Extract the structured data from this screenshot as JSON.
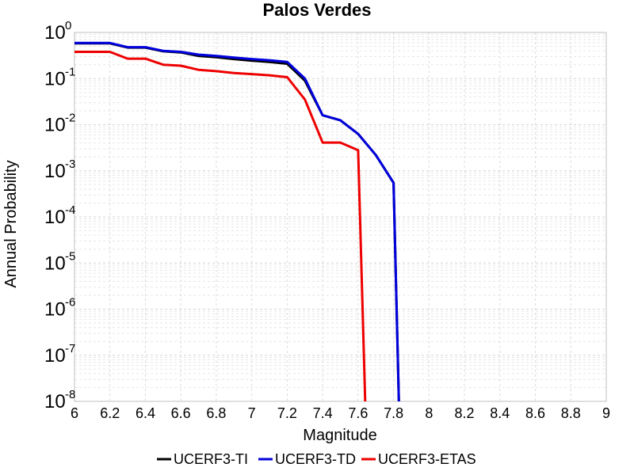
{
  "chart_data": {
    "type": "line",
    "title": "Palos Verdes",
    "xlabel": "Magnitude",
    "ylabel": "Annual Probability",
    "xlim": [
      6,
      9
    ],
    "ylim": [
      1e-08,
      1
    ],
    "yscale": "log",
    "grid": true,
    "legend_position": "bottom",
    "x_ticks": [
      "6",
      "6.2",
      "6.4",
      "6.6",
      "6.8",
      "7",
      "7.2",
      "7.4",
      "7.6",
      "7.8",
      "8",
      "8.2",
      "8.4",
      "8.6",
      "8.8",
      "9"
    ],
    "y_ticks": [
      {
        "base": "10",
        "exp": "0"
      },
      {
        "base": "10",
        "exp": "-1"
      },
      {
        "base": "10",
        "exp": "-2"
      },
      {
        "base": "10",
        "exp": "-3"
      },
      {
        "base": "10",
        "exp": "-4"
      },
      {
        "base": "10",
        "exp": "-5"
      },
      {
        "base": "10",
        "exp": "-6"
      },
      {
        "base": "10",
        "exp": "-7"
      },
      {
        "base": "10",
        "exp": "-8"
      }
    ],
    "series": [
      {
        "name": "UCERF3-TI",
        "color": "#000000",
        "x": [
          6.0,
          6.2,
          6.3,
          6.4,
          6.5,
          6.6,
          6.7,
          6.8,
          6.9,
          7.0,
          7.1,
          7.2,
          7.3,
          7.4,
          7.5,
          7.6,
          7.7,
          7.8,
          7.83
        ],
        "y": [
          0.58,
          0.58,
          0.47,
          0.47,
          0.39,
          0.37,
          0.31,
          0.29,
          0.265,
          0.245,
          0.23,
          0.21,
          0.09,
          0.016,
          0.0125,
          0.0063,
          0.0022,
          0.00055,
          1e-08
        ]
      },
      {
        "name": "UCERF3-TD",
        "color": "#0000dd",
        "x": [
          6.0,
          6.2,
          6.3,
          6.4,
          6.5,
          6.6,
          6.7,
          6.8,
          6.9,
          7.0,
          7.1,
          7.2,
          7.3,
          7.4,
          7.5,
          7.6,
          7.7,
          7.8,
          7.83
        ],
        "y": [
          0.59,
          0.59,
          0.48,
          0.48,
          0.4,
          0.38,
          0.33,
          0.31,
          0.285,
          0.265,
          0.25,
          0.23,
          0.1,
          0.016,
          0.0125,
          0.0063,
          0.0022,
          0.00055,
          1e-08
        ]
      },
      {
        "name": "UCERF3-ETAS",
        "color": "#ee0000",
        "x": [
          6.0,
          6.2,
          6.3,
          6.4,
          6.5,
          6.6,
          6.7,
          6.8,
          6.9,
          7.0,
          7.1,
          7.2,
          7.3,
          7.4,
          7.5,
          7.6,
          7.64
        ],
        "y": [
          0.38,
          0.38,
          0.27,
          0.27,
          0.2,
          0.19,
          0.155,
          0.145,
          0.132,
          0.125,
          0.118,
          0.107,
          0.035,
          0.0041,
          0.0041,
          0.0028,
          1e-08
        ]
      }
    ]
  }
}
